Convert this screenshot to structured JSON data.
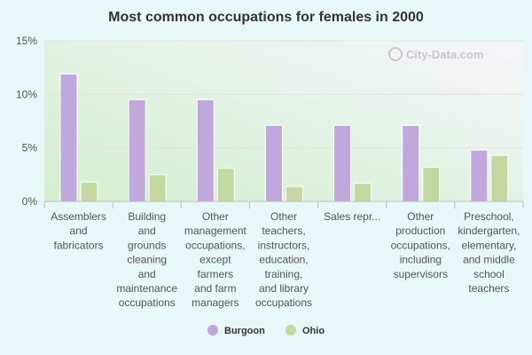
{
  "watermark": "City-Data.com",
  "chart_data": {
    "type": "bar",
    "title": "Most common occupations for females in 2000",
    "xlabel": "",
    "ylabel": "",
    "ylim": [
      0,
      15
    ],
    "yticks": [
      "0%",
      "5%",
      "10%",
      "15%"
    ],
    "grid": true,
    "legend_position": "bottom",
    "categories": [
      [
        "Assemblers",
        "and",
        "fabricators"
      ],
      [
        "Building",
        "and",
        "grounds",
        "cleaning",
        "and",
        "maintenance",
        "occupations"
      ],
      [
        "Other",
        "management",
        "occupations,",
        "except",
        "farmers",
        "and farm",
        "managers"
      ],
      [
        "Other",
        "teachers,",
        "instructors,",
        "education,",
        "training,",
        "and library",
        "occupations"
      ],
      [
        "Sales repr..."
      ],
      [
        "Other",
        "production",
        "occupations,",
        "including",
        "supervisors"
      ],
      [
        "Preschool,",
        "kindergarten,",
        "elementary,",
        "and middle",
        "school",
        "teachers"
      ]
    ],
    "series": [
      {
        "name": "Burgoon",
        "color": "#c0a8dc",
        "values": [
          11.9,
          9.5,
          9.5,
          7.1,
          7.1,
          7.1,
          4.8
        ]
      },
      {
        "name": "Ohio",
        "color": "#c5d8a2",
        "values": [
          1.8,
          2.5,
          3.1,
          1.4,
          1.7,
          3.2,
          4.3
        ]
      }
    ]
  }
}
